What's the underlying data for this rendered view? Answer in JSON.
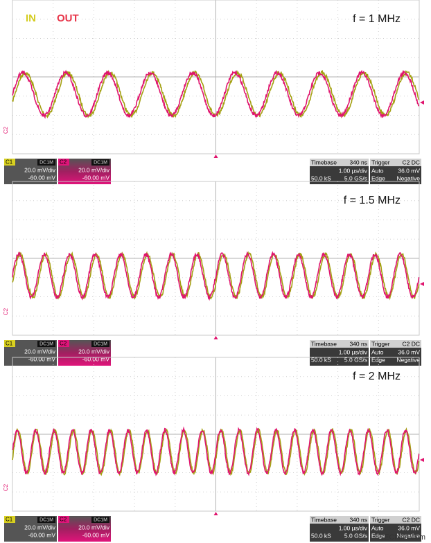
{
  "legend": {
    "in": "IN",
    "out": "OUT"
  },
  "panels": [
    {
      "freq": "f = 1 MHz",
      "marker": "C2",
      "c1": {
        "label": "C1",
        "coupling": "DC1M",
        "scale": "20.0 mV/div",
        "offset": "-60.00 mV"
      },
      "c2": {
        "label": "C2",
        "coupling": "DC1M",
        "scale": "20.0 mV/div",
        "offset": "-60.00 mV"
      },
      "timebase": {
        "label": "Timebase",
        "delay": "340 ns",
        "scale": "1.00 µs/div",
        "samples": "50.0 kS",
        "rate": "5.0 GS/s"
      },
      "trigger": {
        "label": "Trigger",
        "source": "C2 DC",
        "mode": "Auto",
        "level": "36.0 mV",
        "type": "Edge",
        "slope": "Negative"
      }
    },
    {
      "freq": "f = 1.5 MHz",
      "marker": "C2",
      "c1": {
        "label": "C1",
        "coupling": "DC1M",
        "scale": "20.0 mV/div",
        "offset": "-60.00 mV"
      },
      "c2": {
        "label": "C2",
        "coupling": "DC1M",
        "scale": "20.0 mV/div",
        "offset": "-60.00 mV"
      },
      "timebase": {
        "label": "Timebase",
        "delay": "340 ns",
        "scale": "1.00 µs/div",
        "samples": "50.0 kS",
        "rate": "5.0 GS/s"
      },
      "trigger": {
        "label": "Trigger",
        "source": "C2 DC",
        "mode": "Auto",
        "level": "36.0 mV",
        "type": "Edge",
        "slope": "Negative"
      }
    },
    {
      "freq": "f = 2 MHz",
      "marker": "C2",
      "c1": {
        "label": "C1",
        "coupling": "DC1M",
        "scale": "20.0 mV/div",
        "offset": "-60.00 mV"
      },
      "c2": {
        "label": "C2",
        "coupling": "DC1M",
        "scale": "20.0 mV/div",
        "offset": "-60.00 mV"
      },
      "timebase": {
        "label": "Timebase",
        "delay": "340 ns",
        "scale": "1.00 µs/div",
        "samples": "50.0 kS",
        "rate": "5.0 GS/s"
      },
      "trigger": {
        "label": "Trigger",
        "source": "C2 DC",
        "mode": "Auto",
        "level": "36.0 mV",
        "type": "Edge",
        "slope": "Negative"
      }
    }
  ],
  "watermark": "EEChina.com"
}
